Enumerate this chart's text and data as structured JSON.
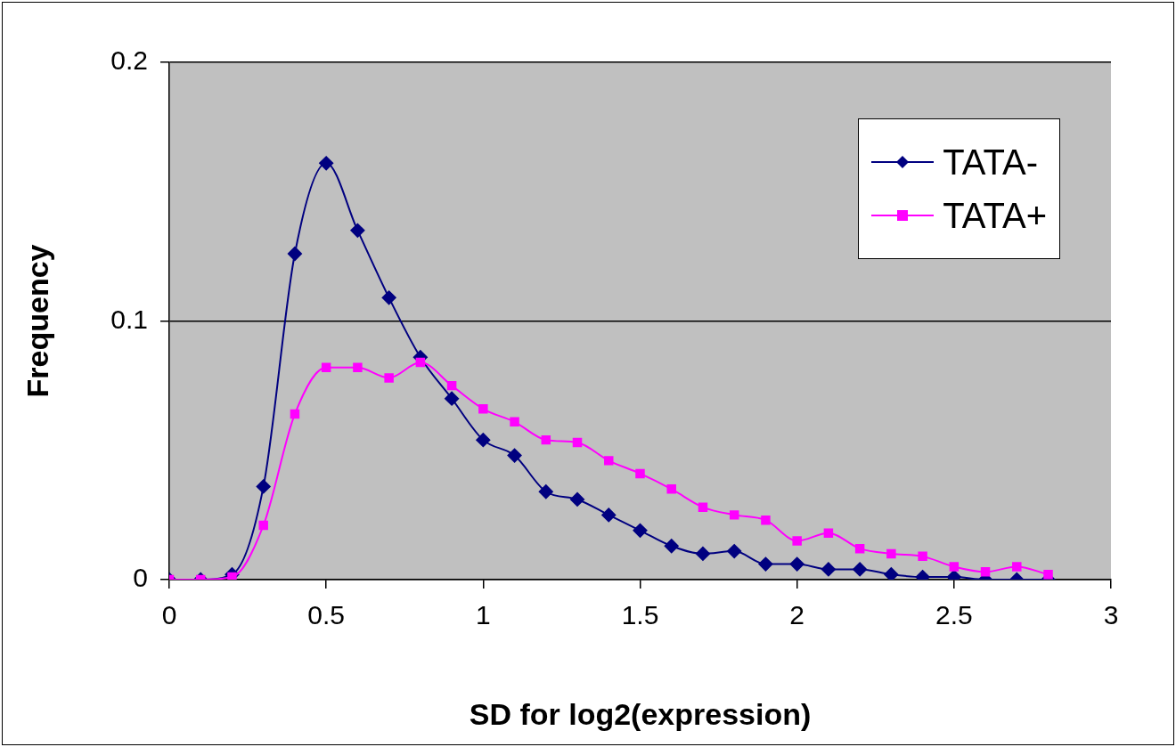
{
  "chart_data": {
    "type": "line",
    "xlabel": "SD for log2(expression)",
    "ylabel": "Frequency",
    "x": [
      0,
      0.1,
      0.2,
      0.3,
      0.4,
      0.5,
      0.6,
      0.7,
      0.8,
      0.9,
      1.0,
      1.1,
      1.2,
      1.3,
      1.4,
      1.5,
      1.6,
      1.7,
      1.8,
      1.9,
      2.0,
      2.1,
      2.2,
      2.3,
      2.4,
      2.5,
      2.6,
      2.7,
      2.8
    ],
    "series": [
      {
        "name": "TATA-",
        "color": "#000080",
        "marker": "diamond",
        "values": [
          0,
          0,
          0.002,
          0.036,
          0.126,
          0.161,
          0.135,
          0.109,
          0.086,
          0.07,
          0.054,
          0.048,
          0.034,
          0.031,
          0.025,
          0.019,
          0.013,
          0.01,
          0.011,
          0.006,
          0.006,
          0.004,
          0.004,
          0.002,
          0.001,
          0.001,
          0,
          0,
          0
        ]
      },
      {
        "name": "TATA+",
        "color": "#ff00ff",
        "marker": "square",
        "values": [
          0,
          0,
          0.001,
          0.021,
          0.064,
          0.082,
          0.082,
          0.078,
          0.084,
          0.075,
          0.066,
          0.061,
          0.054,
          0.053,
          0.046,
          0.041,
          0.035,
          0.028,
          0.025,
          0.023,
          0.015,
          0.018,
          0.012,
          0.01,
          0.009,
          0.005,
          0.003,
          0.005,
          0.002
        ]
      }
    ],
    "xlim": [
      0,
      3
    ],
    "xticks": [
      0,
      0.5,
      1,
      1.5,
      2,
      2.5,
      3
    ],
    "ylim": [
      0,
      0.2
    ],
    "yticks": [
      0,
      0.1,
      0.2
    ],
    "grid": "y",
    "legend": "top right"
  }
}
